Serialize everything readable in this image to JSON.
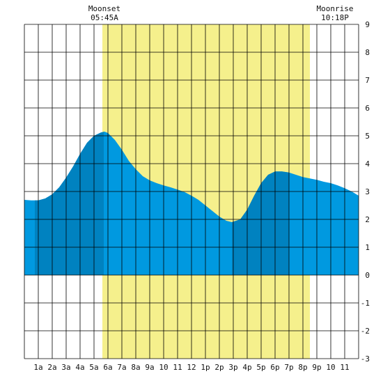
{
  "chart_data": {
    "type": "area",
    "x_unit": "hour",
    "xlim": [
      0,
      24
    ],
    "ylim": [
      -3,
      9
    ],
    "grid": true,
    "x_tick_labels": [
      "1a",
      "2a",
      "3a",
      "4a",
      "5a",
      "6a",
      "7a",
      "8a",
      "9a",
      "10",
      "11",
      "12",
      "1p",
      "2p",
      "3p",
      "4p",
      "5p",
      "6p",
      "7p",
      "8p",
      "9p",
      "10",
      "11"
    ],
    "y_ticks": [
      -3,
      -2,
      -1,
      0,
      1,
      2,
      3,
      4,
      5,
      6,
      7,
      8,
      9
    ],
    "daylight": {
      "start_hour": 5.6,
      "end_hour": 20.5
    },
    "annotations": [
      {
        "label": "Moonset",
        "time": "05:45A",
        "hour": 5.75
      },
      {
        "label": "Moonrise",
        "time": "10:18P",
        "hour": 22.3
      }
    ],
    "dark_bands": [
      [
        0.75,
        5.7
      ],
      [
        14.9,
        19.0
      ]
    ],
    "series": [
      {
        "x": [
          0,
          0.5,
          1,
          1.5,
          2,
          2.5,
          3,
          3.5,
          4,
          4.5,
          5,
          5.5,
          5.75,
          6,
          6.5,
          7,
          7.5,
          8,
          8.5,
          9,
          9.5,
          10,
          10.5,
          11,
          11.5,
          12,
          12.5,
          13,
          13.5,
          14,
          14.5,
          14.9,
          15.5,
          16,
          16.5,
          17,
          17.5,
          18,
          18.5,
          19,
          19.5,
          20,
          20.5,
          21,
          21.5,
          22,
          22.5,
          23,
          23.5,
          24
        ],
        "y": [
          2.7,
          2.68,
          2.68,
          2.75,
          2.9,
          3.15,
          3.5,
          3.9,
          4.35,
          4.75,
          5.0,
          5.12,
          5.15,
          5.1,
          4.85,
          4.5,
          4.1,
          3.8,
          3.55,
          3.4,
          3.3,
          3.22,
          3.15,
          3.07,
          2.98,
          2.85,
          2.7,
          2.5,
          2.3,
          2.1,
          1.95,
          1.9,
          2.0,
          2.35,
          2.85,
          3.3,
          3.6,
          3.72,
          3.72,
          3.68,
          3.6,
          3.52,
          3.47,
          3.42,
          3.35,
          3.3,
          3.22,
          3.12,
          3.0,
          2.85
        ]
      }
    ]
  }
}
